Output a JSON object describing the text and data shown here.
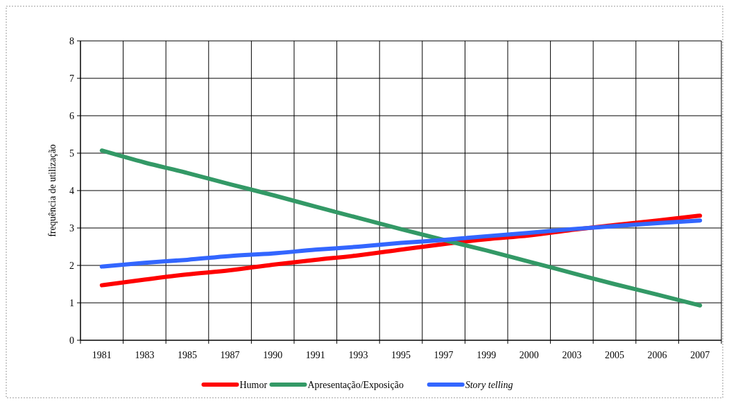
{
  "chart_data": {
    "type": "line",
    "ylabel": "frequência de utilização",
    "categories": [
      "1981",
      "1983",
      "1985",
      "1987",
      "1990",
      "1991",
      "1993",
      "1995",
      "1997",
      "1999",
      "2000",
      "2003",
      "2005",
      "2006",
      "2007"
    ],
    "series": [
      {
        "name": "Humor",
        "color": "#ff0000",
        "values": [
          1.47,
          1.62,
          1.76,
          1.87,
          2.02,
          2.15,
          2.27,
          2.42,
          2.57,
          2.7,
          2.8,
          2.95,
          3.08,
          3.2,
          3.33
        ]
      },
      {
        "name": "Apresentação/Exposição",
        "color": "#339966",
        "values": [
          5.07,
          4.75,
          4.47,
          4.17,
          3.88,
          3.57,
          3.27,
          2.97,
          2.68,
          2.4,
          2.1,
          1.8,
          1.5,
          1.22,
          0.93
        ]
      },
      {
        "name": "Story telling",
        "color": "#3366ff",
        "values": [
          1.97,
          2.07,
          2.15,
          2.25,
          2.32,
          2.42,
          2.5,
          2.6,
          2.68,
          2.78,
          2.87,
          2.97,
          3.05,
          3.13,
          3.2
        ]
      }
    ],
    "ylim": [
      0,
      8
    ],
    "yticks": [
      0,
      1,
      2,
      3,
      4,
      5,
      6,
      7,
      8
    ],
    "grid": true,
    "legend": "bottom",
    "marker": "none",
    "line_style": "solid"
  }
}
